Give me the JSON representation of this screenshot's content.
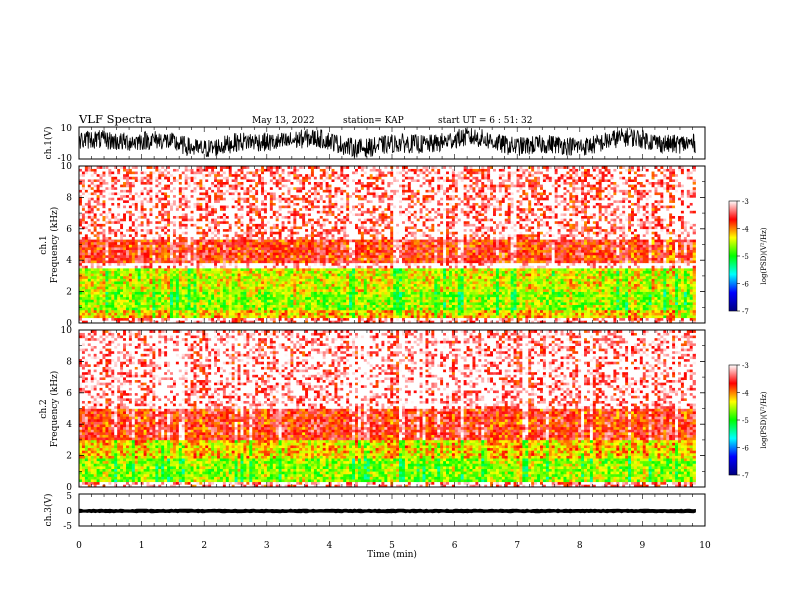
{
  "header": {
    "title": "VLF Spectra",
    "date": "May 13, 2022",
    "station": "station= KAP",
    "start": "start  UT =  6 : 51: 32"
  },
  "colors": {
    "colormap": [
      "#000080",
      "#0000ff",
      "#00ffff",
      "#00ff00",
      "#ffff00",
      "#ff0000",
      "#ffffff"
    ],
    "trace": "#000000"
  },
  "chart_data": [
    {
      "type": "line",
      "panel": "ch1-waveform",
      "ylabel": "ch.1(V)",
      "yticks": [
        "10",
        "-10"
      ],
      "ylim": [
        -10,
        10
      ],
      "x_range_min": [
        0,
        9.85
      ],
      "description_band_V": [
        -5,
        5
      ]
    },
    {
      "type": "heatmap",
      "panel": "ch1-spectrogram",
      "ylabel": "ch.1\nFrequency (kHz)",
      "ylabel_line1": "ch.1",
      "ylabel_line2": "Frequency  (kHz)",
      "ylim": [
        0,
        10
      ],
      "yticks": [
        "0",
        "2",
        "4",
        "6",
        "8",
        "10"
      ],
      "colorbar": {
        "label": "log(PSD)(V²/Hz)",
        "range": [
          -7,
          -3
        ],
        "ticks": [
          "-3",
          "-4",
          "-5",
          "-6",
          "-7"
        ]
      },
      "bands_kHz": [
        {
          "from": 0,
          "to": 0.3,
          "log_psd": -3.5
        },
        {
          "from": 0.3,
          "to": 0.7,
          "log_psd": -4.2
        },
        {
          "from": 0.7,
          "to": 2.0,
          "log_psd": -4.6
        },
        {
          "from": 2.0,
          "to": 3.4,
          "log_psd": -4.4
        },
        {
          "from": 3.4,
          "to": 3.8,
          "log_psd": -3.2
        },
        {
          "from": 3.8,
          "to": 5.2,
          "log_psd": -3.7
        },
        {
          "from": 5.2,
          "to": 10.0,
          "log_psd": -3.5
        }
      ]
    },
    {
      "type": "heatmap",
      "panel": "ch2-spectrogram",
      "ylabel_line1": "ch.2",
      "ylabel_line2": "Frequency  (kHz)",
      "ylim": [
        0,
        10
      ],
      "yticks": [
        "0",
        "2",
        "4",
        "6",
        "8",
        "10"
      ],
      "colorbar": {
        "label": "log(PSD)(V²/Hz)",
        "range": [
          -7,
          -3
        ],
        "ticks": [
          "-3",
          "-4",
          "-5",
          "-6",
          "-7"
        ]
      },
      "bands_kHz": [
        {
          "from": 0,
          "to": 0.3,
          "log_psd": -3.5
        },
        {
          "from": 0.3,
          "to": 1.8,
          "log_psd": -4.6
        },
        {
          "from": 1.8,
          "to": 2.9,
          "log_psd": -4.2
        },
        {
          "from": 2.9,
          "to": 5.0,
          "log_psd": -3.7
        },
        {
          "from": 5.0,
          "to": 10.0,
          "log_psd": -3.4
        }
      ]
    },
    {
      "type": "line",
      "panel": "ch3-waveform",
      "ylabel": "ch.3(V)",
      "yticks": [
        "5",
        "0",
        "-5"
      ],
      "ylim": [
        -5,
        5
      ],
      "x_range_min": [
        0,
        9.85
      ],
      "description_band_V": [
        -0.8,
        0.2
      ]
    }
  ],
  "xaxis": {
    "label": "Time  (min)",
    "ticks": [
      "0",
      "1",
      "2",
      "3",
      "4",
      "5",
      "6",
      "7",
      "8",
      "9",
      "10"
    ],
    "xlim": [
      0,
      10
    ]
  }
}
